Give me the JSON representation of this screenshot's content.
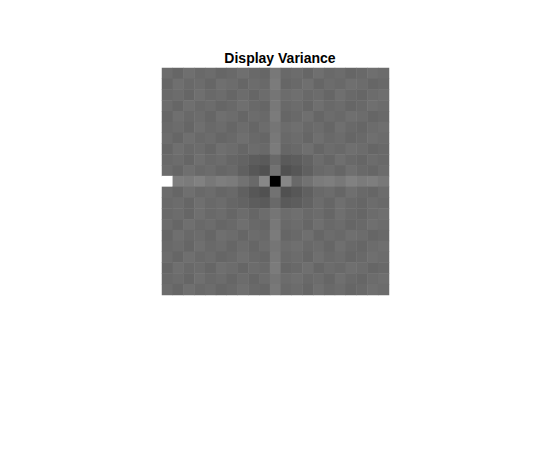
{
  "chart_data": {
    "type": "heatmap",
    "title": "Display Variance",
    "tick_labels": false,
    "grid": false,
    "cells": [
      [
        0.46,
        0.44,
        0.47,
        0.45,
        0.46,
        0.44,
        0.45,
        0.47,
        0.45,
        0.44,
        0.5,
        0.45,
        0.46,
        0.44,
        0.47,
        0.45,
        0.46,
        0.44,
        0.45,
        0.47,
        0.46
      ],
      [
        0.44,
        0.47,
        0.45,
        0.46,
        0.44,
        0.47,
        0.46,
        0.44,
        0.46,
        0.45,
        0.51,
        0.44,
        0.45,
        0.47,
        0.44,
        0.46,
        0.45,
        0.47,
        0.46,
        0.44,
        0.45
      ],
      [
        0.45,
        0.46,
        0.44,
        0.47,
        0.45,
        0.46,
        0.44,
        0.46,
        0.44,
        0.46,
        0.49,
        0.46,
        0.47,
        0.45,
        0.46,
        0.44,
        0.47,
        0.45,
        0.44,
        0.46,
        0.47
      ],
      [
        0.46,
        0.44,
        0.47,
        0.45,
        0.46,
        0.44,
        0.45,
        0.47,
        0.45,
        0.44,
        0.5,
        0.45,
        0.46,
        0.44,
        0.47,
        0.45,
        0.46,
        0.44,
        0.45,
        0.47,
        0.46
      ],
      [
        0.44,
        0.47,
        0.45,
        0.46,
        0.44,
        0.47,
        0.46,
        0.44,
        0.46,
        0.45,
        0.51,
        0.44,
        0.45,
        0.47,
        0.44,
        0.46,
        0.45,
        0.47,
        0.46,
        0.44,
        0.45
      ],
      [
        0.45,
        0.46,
        0.44,
        0.47,
        0.45,
        0.46,
        0.44,
        0.46,
        0.44,
        0.46,
        0.49,
        0.46,
        0.47,
        0.45,
        0.46,
        0.44,
        0.47,
        0.45,
        0.44,
        0.46,
        0.47
      ],
      [
        0.46,
        0.44,
        0.47,
        0.45,
        0.46,
        0.44,
        0.45,
        0.47,
        0.45,
        0.44,
        0.5,
        0.45,
        0.46,
        0.44,
        0.47,
        0.45,
        0.46,
        0.44,
        0.45,
        0.47,
        0.46
      ],
      [
        0.44,
        0.47,
        0.45,
        0.46,
        0.44,
        0.47,
        0.46,
        0.44,
        0.46,
        0.45,
        0.51,
        0.44,
        0.45,
        0.47,
        0.44,
        0.46,
        0.45,
        0.47,
        0.46,
        0.44,
        0.45
      ],
      [
        0.45,
        0.46,
        0.44,
        0.47,
        0.45,
        0.46,
        0.44,
        0.43,
        0.41,
        0.4,
        0.45,
        0.4,
        0.41,
        0.43,
        0.46,
        0.44,
        0.47,
        0.45,
        0.44,
        0.46,
        0.45
      ],
      [
        0.46,
        0.44,
        0.47,
        0.45,
        0.46,
        0.44,
        0.45,
        0.42,
        0.39,
        0.37,
        0.48,
        0.37,
        0.39,
        0.42,
        0.45,
        0.46,
        0.44,
        0.47,
        0.45,
        0.44,
        0.46
      ],
      [
        0.95,
        0.52,
        0.51,
        0.53,
        0.5,
        0.52,
        0.51,
        0.48,
        0.45,
        0.55,
        0.1,
        0.55,
        0.45,
        0.48,
        0.51,
        0.52,
        0.5,
        0.53,
        0.51,
        0.52,
        0.5
      ],
      [
        0.46,
        0.44,
        0.47,
        0.45,
        0.46,
        0.44,
        0.45,
        0.42,
        0.39,
        0.37,
        0.48,
        0.37,
        0.39,
        0.42,
        0.45,
        0.46,
        0.44,
        0.47,
        0.45,
        0.44,
        0.46
      ],
      [
        0.45,
        0.46,
        0.44,
        0.47,
        0.45,
        0.46,
        0.44,
        0.43,
        0.41,
        0.4,
        0.45,
        0.4,
        0.41,
        0.43,
        0.46,
        0.44,
        0.47,
        0.45,
        0.44,
        0.46,
        0.45
      ],
      [
        0.45,
        0.46,
        0.44,
        0.47,
        0.45,
        0.46,
        0.44,
        0.46,
        0.44,
        0.46,
        0.49,
        0.46,
        0.47,
        0.45,
        0.46,
        0.44,
        0.47,
        0.45,
        0.44,
        0.46,
        0.47
      ],
      [
        0.46,
        0.44,
        0.47,
        0.45,
        0.46,
        0.44,
        0.45,
        0.47,
        0.45,
        0.44,
        0.5,
        0.45,
        0.46,
        0.44,
        0.47,
        0.45,
        0.46,
        0.44,
        0.45,
        0.47,
        0.46
      ],
      [
        0.44,
        0.47,
        0.45,
        0.46,
        0.44,
        0.47,
        0.46,
        0.44,
        0.46,
        0.45,
        0.51,
        0.44,
        0.45,
        0.47,
        0.44,
        0.46,
        0.45,
        0.47,
        0.46,
        0.44,
        0.45
      ],
      [
        0.45,
        0.46,
        0.44,
        0.47,
        0.45,
        0.46,
        0.44,
        0.46,
        0.44,
        0.46,
        0.49,
        0.46,
        0.47,
        0.45,
        0.46,
        0.44,
        0.47,
        0.45,
        0.44,
        0.46,
        0.47
      ],
      [
        0.46,
        0.44,
        0.47,
        0.45,
        0.46,
        0.44,
        0.45,
        0.47,
        0.45,
        0.44,
        0.5,
        0.45,
        0.46,
        0.44,
        0.47,
        0.45,
        0.46,
        0.44,
        0.45,
        0.47,
        0.46
      ],
      [
        0.44,
        0.47,
        0.45,
        0.46,
        0.44,
        0.47,
        0.46,
        0.44,
        0.46,
        0.45,
        0.51,
        0.44,
        0.45,
        0.47,
        0.44,
        0.46,
        0.45,
        0.47,
        0.46,
        0.44,
        0.45
      ],
      [
        0.45,
        0.46,
        0.44,
        0.47,
        0.45,
        0.46,
        0.44,
        0.46,
        0.44,
        0.46,
        0.49,
        0.46,
        0.47,
        0.45,
        0.46,
        0.44,
        0.47,
        0.45,
        0.44,
        0.46,
        0.47
      ],
      [
        0.46,
        0.44,
        0.47,
        0.45,
        0.46,
        0.44,
        0.45,
        0.47,
        0.45,
        0.44,
        0.5,
        0.45,
        0.46,
        0.44,
        0.47,
        0.45,
        0.46,
        0.44,
        0.45,
        0.47,
        0.46
      ]
    ]
  }
}
